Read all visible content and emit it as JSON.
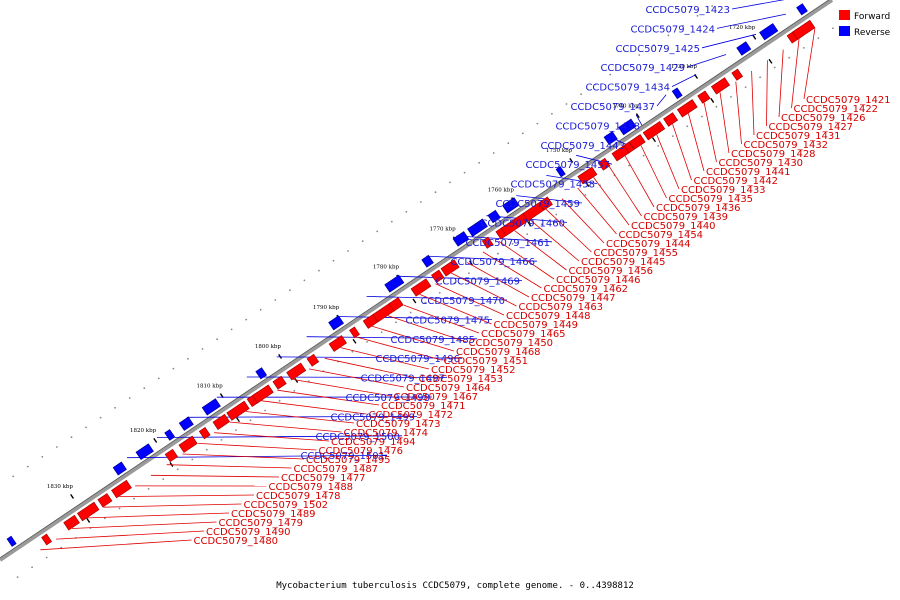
{
  "caption": "Mycobacterium tuberculosis CCDC5079, complete genome. - 0..4398812",
  "legend": [
    {
      "label": "Forward",
      "color": "#ff0000"
    },
    {
      "label": "Reverse",
      "color": "#0000ff"
    }
  ],
  "ticks": [
    "1720 kbp",
    "1730 kbp",
    "1740 kbp",
    "1750 kbp",
    "1760 kbp",
    "1770 kbp",
    "1780 kbp",
    "1790 kbp",
    "1800 kbp",
    "1810 kbp",
    "1820 kbp",
    "1830 kbp"
  ],
  "reverse_labels": [
    "CCDC5079_1423",
    "CCDC5079_1424",
    "CCDC5079_1425",
    "CCDC5079_1429",
    "CCDC5079_1434",
    "CCDC5079_1437",
    "CCDC5079_1438",
    "CCDC5079_1443",
    "CCDC5079_1457",
    "CCDC5079_1458",
    "CCDC5079_1459",
    "CCDC5079_1460",
    "CCDC5079_1461",
    "CCDC5079_1466",
    "CCDC5079_1469",
    "CCDC5079_1470",
    "CCDC5079_1475",
    "CCDC5079_1485",
    "CCDC5079_1496",
    "CCDC5079_1497",
    "CCDC5079_1498",
    "CCDC5079_1499",
    "CCDC5079_1500",
    "CCDC5079_1501"
  ],
  "forward_labels": [
    "CCDC5079_1421",
    "CCDC5079_1422",
    "CCDC5079_1426",
    "CCDC5079_1427",
    "CCDC5079_1431",
    "CCDC5079_1432",
    "CCDC5079_1428",
    "CCDC5079_1430",
    "CCDC5079_1441",
    "CCDC5079_1442",
    "CCDC5079_1433",
    "CCDC5079_1435",
    "CCDC5079_1436",
    "CCDC5079_1439",
    "CCDC5079_1440",
    "CCDC5079_1454",
    "CCDC5079_1444",
    "CCDC5079_1455",
    "CCDC5079_1445",
    "CCDC5079_1456",
    "CCDC5079_1446",
    "CCDC5079_1462",
    "CCDC5079_1447",
    "CCDC5079_1463",
    "CCDC5079_1448",
    "CCDC5079_1449",
    "CCDC5079_1465",
    "CCDC5079_1450",
    "CCDC5079_1468",
    "CCDC5079_1451",
    "CCDC5079_1452",
    "CCDC5079_1453",
    "CCDC5079_1464",
    "CCDC5079_1467",
    "CCDC5079_1471",
    "CCDC5079_1472",
    "CCDC5079_1473",
    "CCDC5079_1474",
    "CCDC5079_1494",
    "CCDC5079_1476",
    "CCDC5079_1495",
    "CCDC5079_1487",
    "CCDC5079_1477",
    "CCDC5079_1488",
    "CCDC5079_1478",
    "CCDC5079_1502",
    "CCDC5079_1489",
    "CCDC5079_1479",
    "CCDC5079_1490",
    "CCDC5079_1480"
  ]
}
